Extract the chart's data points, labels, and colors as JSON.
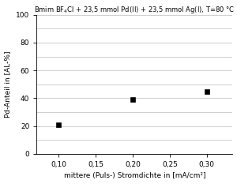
{
  "title": "Bmim BF$_4$Cl + 23,5 mmol Pd(II) + 23,5 mmol Ag(I), T=80 °C",
  "xlabel": "mittere (Puls-) Stromdichte in [mA/cm²]",
  "ylabel": "Pd-Anteil in [AL-%]",
  "x": [
    0.1,
    0.2,
    0.3
  ],
  "y": [
    21,
    39,
    45
  ],
  "xlim": [
    0.07,
    0.335
  ],
  "ylim": [
    0,
    100
  ],
  "xticks": [
    0.1,
    0.15,
    0.2,
    0.25,
    0.3
  ],
  "yticks_major": [
    0,
    20,
    40,
    60,
    80,
    100
  ],
  "yticks_minor": [
    10,
    30,
    50,
    70,
    90
  ],
  "marker": "s",
  "marker_color": "black",
  "marker_size": 4,
  "grid_color": "#c8c8c8",
  "background_color": "#ffffff",
  "title_fontsize": 6.0,
  "label_fontsize": 6.5,
  "tick_fontsize": 6.5
}
